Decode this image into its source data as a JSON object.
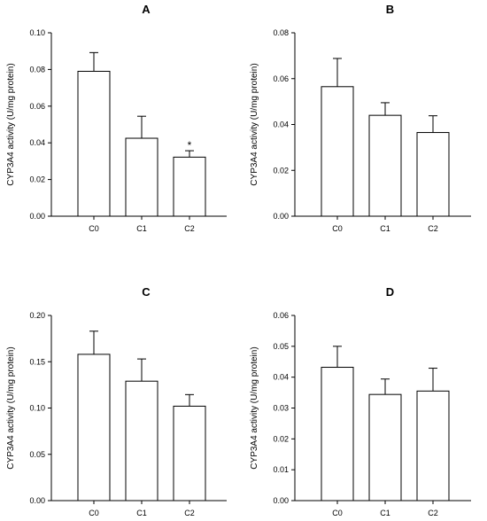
{
  "chart_data": [
    {
      "type": "bar",
      "panel": "A",
      "categories": [
        "C0",
        "C1",
        "C2"
      ],
      "values": [
        0.079,
        0.0425,
        0.0322
      ],
      "errors": [
        0.0102,
        0.012,
        0.0035
      ],
      "annotations": [
        "",
        "",
        "*"
      ],
      "ylabel": "CYP3A4 activity (U/mg protein)",
      "ylim": [
        0,
        0.1
      ],
      "yticks": [
        0,
        0.02,
        0.04,
        0.06,
        0.08,
        0.1
      ],
      "ytick_labels": [
        "0.00",
        "0.02",
        "0.04",
        "0.06",
        "0.08",
        "0.10"
      ]
    },
    {
      "type": "bar",
      "panel": "B",
      "categories": [
        "C0",
        "C1",
        "C2"
      ],
      "values": [
        0.0565,
        0.044,
        0.0365
      ],
      "errors": [
        0.0123,
        0.0055,
        0.0073
      ],
      "annotations": [
        "",
        "",
        ""
      ],
      "ylabel": "CYP3A4 activity (U/mg protein)",
      "ylim": [
        0,
        0.08
      ],
      "yticks": [
        0,
        0.02,
        0.04,
        0.06,
        0.08
      ],
      "ytick_labels": [
        "0.00",
        "0.02",
        "0.04",
        "0.06",
        "0.08"
      ]
    },
    {
      "type": "bar",
      "panel": "C",
      "categories": [
        "C0",
        "C1",
        "C2"
      ],
      "values": [
        0.158,
        0.129,
        0.102
      ],
      "errors": [
        0.025,
        0.024,
        0.0125
      ],
      "annotations": [
        "",
        "",
        ""
      ],
      "ylabel": "CYP3A4 activity (U/mg protein)",
      "ylim": [
        0,
        0.2
      ],
      "yticks": [
        0,
        0.05,
        0.1,
        0.15,
        0.2
      ],
      "ytick_labels": [
        "0.00",
        "0.05",
        "0.10",
        "0.15",
        "0.20"
      ]
    },
    {
      "type": "bar",
      "panel": "D",
      "categories": [
        "C0",
        "C1",
        "C2"
      ],
      "values": [
        0.0432,
        0.0344,
        0.0355
      ],
      "errors": [
        0.0068,
        0.005,
        0.0074
      ],
      "annotations": [
        "",
        "",
        ""
      ],
      "ylabel": "CYP3A4 activity (U/mg protein)",
      "ylim": [
        0,
        0.06
      ],
      "yticks": [
        0,
        0.01,
        0.02,
        0.03,
        0.04,
        0.05,
        0.06
      ],
      "ytick_labels": [
        "0.00",
        "0.01",
        "0.02",
        "0.03",
        "0.04",
        "0.05",
        "0.06"
      ]
    }
  ]
}
